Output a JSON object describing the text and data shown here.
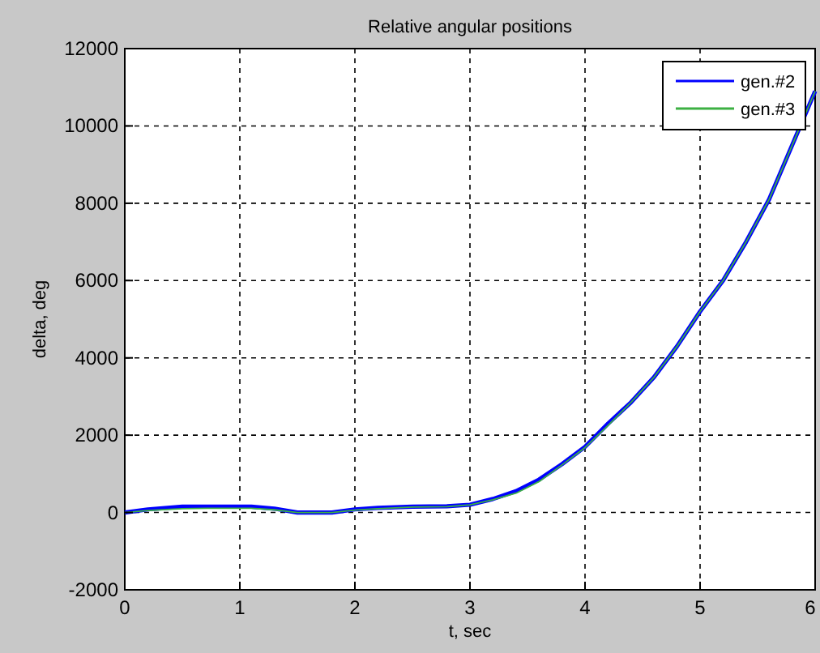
{
  "chart_data": {
    "type": "line",
    "title": "Relative angular positions",
    "xlabel": "t, sec",
    "ylabel": "delta, deg",
    "xlim": [
      0,
      6
    ],
    "ylim": [
      -2000,
      12000
    ],
    "xticks": [
      0,
      1,
      2,
      3,
      4,
      5,
      6
    ],
    "yticks": [
      -2000,
      0,
      2000,
      4000,
      6000,
      8000,
      10000,
      12000
    ],
    "grid": true,
    "legend": "top right",
    "line_style": "solid",
    "series": [
      {
        "name": "gen.#2",
        "color": "#0000ff",
        "x": [
          0,
          0.2,
          0.5,
          0.8,
          1.1,
          1.3,
          1.5,
          1.8,
          2.0,
          2.2,
          2.5,
          2.8,
          3.0,
          3.2,
          3.4,
          3.6,
          3.8,
          4.0,
          4.2,
          4.4,
          4.6,
          4.8,
          5.0,
          5.2,
          5.4,
          5.6,
          5.8,
          6.0
        ],
        "values": [
          0,
          80,
          150,
          150,
          150,
          100,
          0,
          0,
          80,
          120,
          150,
          160,
          200,
          350,
          550,
          850,
          1250,
          1700,
          2300,
          2850,
          3500,
          4300,
          5200,
          6000,
          7000,
          8100,
          9500,
          10900
        ]
      },
      {
        "name": "gen.#3",
        "color": "#3cb043",
        "x": [
          0,
          0.2,
          0.5,
          0.8,
          1.1,
          1.3,
          1.5,
          1.8,
          2.0,
          2.2,
          2.5,
          2.8,
          3.0,
          3.2,
          3.4,
          3.6,
          3.8,
          4.0,
          4.2,
          4.4,
          4.6,
          4.8,
          5.0,
          5.2,
          5.4,
          5.6,
          5.8,
          6.0
        ],
        "values": [
          0,
          50,
          100,
          110,
          110,
          70,
          0,
          0,
          60,
          100,
          140,
          150,
          200,
          330,
          500,
          800,
          1230,
          1680,
          2250,
          2850,
          3500,
          4300,
          5200,
          6000,
          7000,
          8100,
          9500,
          10900
        ]
      }
    ]
  }
}
